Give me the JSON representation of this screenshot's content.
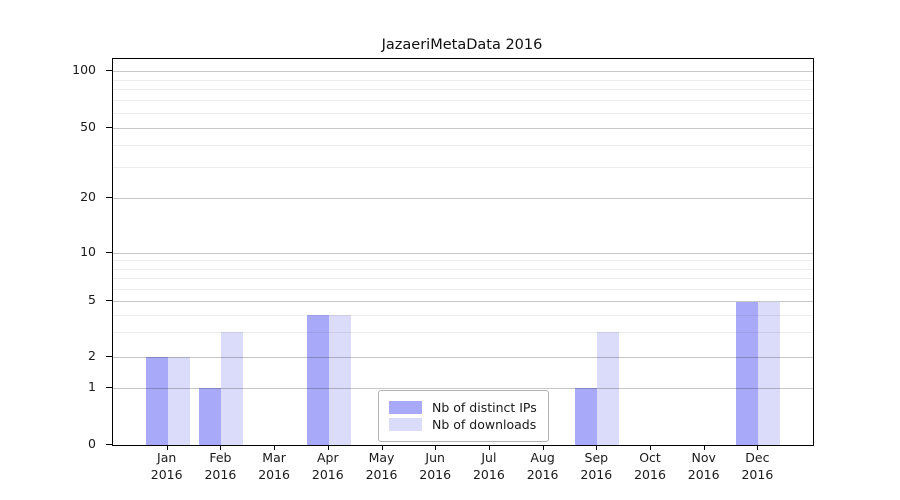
{
  "title": "JazaeriMetaData 2016",
  "chart_data": {
    "type": "bar",
    "title": "JazaeriMetaData 2016",
    "categories": [
      "Jan",
      "Feb",
      "Mar",
      "Apr",
      "May",
      "Jun",
      "Jul",
      "Aug",
      "Sep",
      "Oct",
      "Nov",
      "Dec"
    ],
    "x_year_label": "2016",
    "series": [
      {
        "name": "Nb of distinct IPs",
        "color": "#a9a9fa",
        "values": [
          2,
          1,
          0,
          4,
          0,
          0,
          0,
          0,
          1,
          0,
          0,
          5
        ]
      },
      {
        "name": "Nb of downloads",
        "color": "#dbdbfa",
        "values": [
          2,
          3,
          0,
          4,
          0,
          0,
          0,
          0,
          3,
          0,
          0,
          5
        ]
      }
    ],
    "y_ticks": [
      0,
      1,
      2,
      5,
      10,
      20,
      50,
      100
    ],
    "minor_gridlines": [
      3,
      4,
      6,
      7,
      8,
      9,
      30,
      40,
      60,
      70,
      80,
      90
    ],
    "ylim": [
      0,
      116
    ],
    "scale": "log-like (linear 0-1, log between labeled ticks)",
    "grid": true,
    "legend": {
      "position": "bottom-center",
      "entries": [
        "Nb of distinct IPs",
        "Nb of downloads"
      ]
    }
  }
}
